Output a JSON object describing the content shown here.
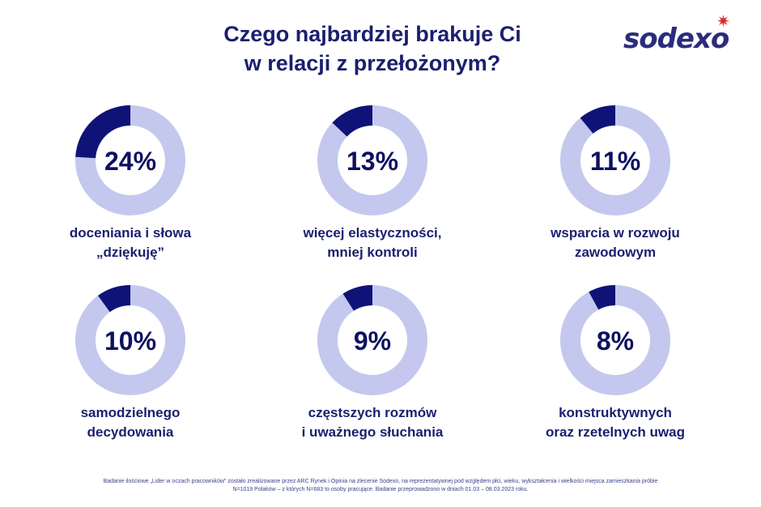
{
  "title": {
    "line1": "Czego najbardziej brakuje Ci",
    "line2": "w relacji z przełożonym?"
  },
  "logo": {
    "text": "sodexo",
    "star_glyph": "✷",
    "color": "#2a2d7c",
    "star_color": "#e0262b"
  },
  "colors": {
    "highlight": "#0f1377",
    "remainder": "#c4c8ee",
    "text": "#1a1f6e"
  },
  "chart_data": [
    {
      "type": "pie",
      "value": 24,
      "label": "24%",
      "caption_lines": [
        "doceniania i słowa",
        "„dziękuję”"
      ]
    },
    {
      "type": "pie",
      "value": 13,
      "label": "13%",
      "caption_lines": [
        "więcej elastyczności,",
        "mniej kontroli"
      ]
    },
    {
      "type": "pie",
      "value": 11,
      "label": "11%",
      "caption_lines": [
        "wsparcia w rozwoju",
        "zawodowym"
      ]
    },
    {
      "type": "pie",
      "value": 10,
      "label": "10%",
      "caption_lines": [
        "samodzielnego",
        "decydowania"
      ]
    },
    {
      "type": "pie",
      "value": 9,
      "label": "9%",
      "caption_lines": [
        "częstszych rozmów",
        "i uważnego słuchania"
      ]
    },
    {
      "type": "pie",
      "value": 8,
      "label": "8%",
      "caption_lines": [
        "konstruktywnych",
        "oraz rzetelnych uwag"
      ]
    }
  ],
  "footnote": {
    "line1": "Badanie ilościowe „Lider w oczach pracowników” zostało zrealizowane przez ARC Rynek i Opinia na zlecenie Sodexo, na reprezentatywnej pod względem płci, wieku, wykształcenia i wielkości miejsca zamieszkania próbie",
    "line2": "N=1019 Polaków – z których N=683 to osoby pracujące. Badanie przeprowadzono w dniach 01.03 – 08.03.2023 roku."
  }
}
